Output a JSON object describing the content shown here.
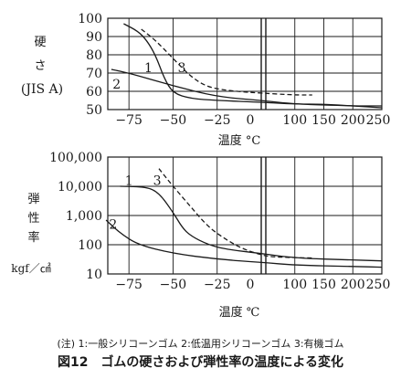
{
  "chart_data": [
    {
      "type": "line",
      "ylabel_lines": [
        "硬",
        "さ",
        "(JIS A)"
      ],
      "xlabel": "",
      "y_ticks": [
        "100",
        "90",
        "80",
        "70",
        "60",
        "50"
      ],
      "x_ticks_left": [
        "−75",
        "−50",
        "−25",
        "0"
      ],
      "x_ticks_right": [
        "100",
        "150",
        "200",
        "250"
      ],
      "ylim": [
        50,
        100
      ],
      "x_unit": "°C",
      "series": [
        {
          "name": "1",
          "style": "solid",
          "points": [
            [
              -78,
              97
            ],
            [
              -70,
              93
            ],
            [
              -65,
              88
            ],
            [
              -60,
              80
            ],
            [
              -55,
              67
            ],
            [
              -50,
              59
            ],
            [
              -40,
              56
            ],
            [
              -25,
              55
            ],
            [
              0,
              54
            ],
            [
              100,
              53
            ],
            [
              150,
              53
            ],
            [
              200,
              52
            ],
            [
              250,
              51
            ]
          ]
        },
        {
          "name": "2",
          "style": "solid",
          "points": [
            [
              -85,
              72
            ],
            [
              -75,
              70
            ],
            [
              -50,
              63
            ],
            [
              -25,
              57
            ],
            [
              0,
              55
            ],
            [
              100,
              53
            ],
            [
              200,
              52
            ],
            [
              250,
              52
            ]
          ]
        },
        {
          "name": "3",
          "style": "dashed",
          "points": [
            [
              -68,
              94
            ],
            [
              -60,
              88
            ],
            [
              -50,
              78
            ],
            [
              -40,
              68
            ],
            [
              -30,
              62
            ],
            [
              -15,
              60
            ],
            [
              0,
              59
            ],
            [
              100,
              58
            ],
            [
              130,
              58
            ]
          ]
        }
      ],
      "labels": [
        {
          "text": "1",
          "x": -64,
          "y": 73
        },
        {
          "text": "2",
          "x": -82,
          "y": 64
        },
        {
          "text": "3",
          "x": -45,
          "y": 73
        }
      ]
    },
    {
      "type": "line",
      "ylabel_lines": [
        "弾",
        "性",
        "率"
      ],
      "ylabel_unit": "kgf／㎠",
      "xlabel": "温度 ℃",
      "y_ticks": [
        "100,000",
        "10,000",
        "1,000",
        "100",
        "10"
      ],
      "x_ticks_left": [
        "−75",
        "−50",
        "−25",
        "0"
      ],
      "x_ticks_right": [
        "100",
        "150",
        "200",
        "250"
      ],
      "ylim_log10": [
        1,
        5
      ],
      "log_scale": true,
      "series": [
        {
          "name": "1",
          "style": "solid",
          "points": [
            [
              -80,
              10000
            ],
            [
              -65,
              9500
            ],
            [
              -58,
              6000
            ],
            [
              -50,
              1300
            ],
            [
              -45,
              400
            ],
            [
              -40,
              200
            ],
            [
              -30,
              100
            ],
            [
              -20,
              70
            ],
            [
              0,
              50
            ],
            [
              100,
              35
            ],
            [
              200,
              30
            ],
            [
              250,
              28
            ]
          ]
        },
        {
          "name": "2",
          "style": "solid",
          "points": [
            [
              -88,
              700
            ],
            [
              -80,
              250
            ],
            [
              -70,
              100
            ],
            [
              -50,
              50
            ],
            [
              -25,
              32
            ],
            [
              0,
              25
            ],
            [
              100,
              20
            ],
            [
              200,
              18
            ],
            [
              250,
              17
            ]
          ]
        },
        {
          "name": "3",
          "style": "dashed",
          "points": [
            [
              -58,
              40000
            ],
            [
              -50,
              10000
            ],
            [
              -40,
              2000
            ],
            [
              -30,
              400
            ],
            [
              -20,
              150
            ],
            [
              -10,
              70
            ],
            [
              0,
              45
            ],
            [
              60,
              38
            ],
            [
              130,
              35
            ]
          ]
        }
      ],
      "labels": [
        {
          "text": "1",
          "x": -75,
          "y_log10": 4.2
        },
        {
          "text": "2",
          "x": -84,
          "y_log10": 2.7
        },
        {
          "text": "3",
          "x": -59,
          "y_log10": 4.2
        }
      ]
    }
  ],
  "caption": {
    "note": "(注) 1:一般シリコーンゴム 2:低温用シリコーンゴム 3:有機ゴム",
    "figure_number": "図12",
    "title": "ゴムの硬さおよび弾性率の温度による変化"
  }
}
